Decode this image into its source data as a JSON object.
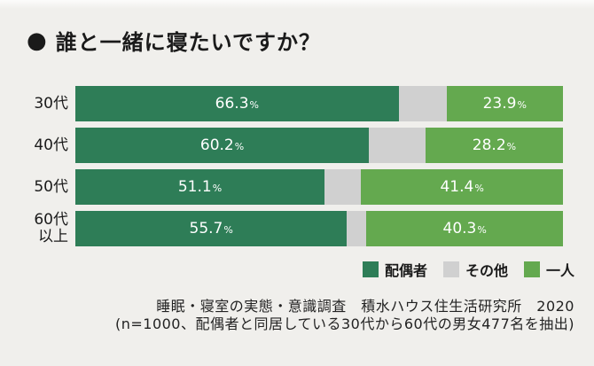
{
  "title": {
    "bullet": "●",
    "text": "誰と一緒に寝たいですか？"
  },
  "chart_data": {
    "type": "bar",
    "orientation": "horizontal",
    "stacked": true,
    "xlim": [
      0,
      100
    ],
    "value_suffix": "%",
    "grid": false,
    "legend_position": "bottom-right",
    "categories": [
      "30代",
      "40代",
      "50代",
      "60代以上"
    ],
    "display_labels": [
      "30代",
      "40代",
      "50代",
      "60代\n以上"
    ],
    "series": [
      {
        "key": "spouse",
        "name": "配偶者",
        "color": "#2e7d57",
        "show_label": true,
        "values": [
          66.3,
          60.2,
          51.1,
          55.7
        ]
      },
      {
        "key": "other",
        "name": "その他",
        "color": "#d0d0d0",
        "show_label": false,
        "values": [
          9.8,
          11.6,
          7.5,
          4.0
        ]
      },
      {
        "key": "alone",
        "name": "一人",
        "color": "#64a94f",
        "show_label": true,
        "values": [
          23.9,
          28.2,
          41.4,
          40.3
        ]
      }
    ]
  },
  "legend": [
    {
      "key": "spouse",
      "label": "配偶者",
      "color": "#2e7d57"
    },
    {
      "key": "other",
      "label": "その他",
      "color": "#d0d0d0"
    },
    {
      "key": "alone",
      "label": "一人",
      "color": "#64a94f"
    }
  ],
  "footer": {
    "line1": "睡眠・寝室の実態・意識調査　積水ハウス住生活研究所　2020",
    "line2": "(n=1000、配偶者と同居している30代から60代の男女477名を抽出)"
  },
  "colors": {
    "background": "#f0efec",
    "text": "#1a1a1a",
    "bar_label": "#ffffff",
    "spouse_green": "#2e7d57",
    "other_gray": "#d0d0d0",
    "alone_green": "#64a94f"
  }
}
